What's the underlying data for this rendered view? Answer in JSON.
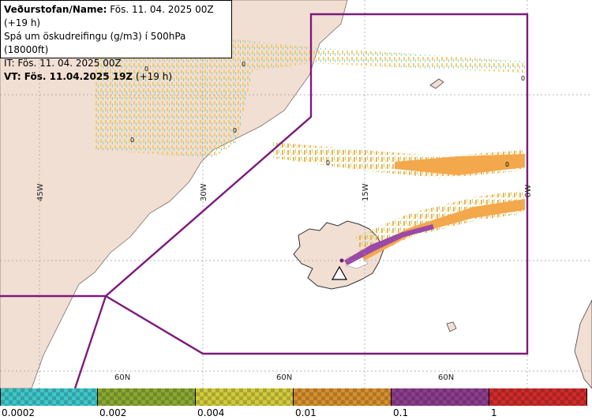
{
  "header": {
    "line1_bold": "Veðurstofan/Name:",
    "line1_rest": " Fös. 11. 04. 2025 00Z (+19 h)",
    "line2": "Spá um öskudreifingu (g/m3) í 500hPa (18000ft)",
    "line3": "IT: Fös. 11. 04. 2025 00Z",
    "line4_bold": "VT: Fös. 11.04.2025 19Z",
    "line4_rest": " (+19 h)"
  },
  "grid_labels": {
    "lon": [
      "45W",
      "30W",
      "15W",
      "0W"
    ],
    "lat": [
      "60N",
      "60N",
      "60N"
    ]
  },
  "contour_zero": "0",
  "legend": {
    "ticks": [
      "0.0002",
      "0.002",
      "0.004",
      "0.01",
      "0.1",
      "1"
    ],
    "colors": [
      "#3fc6c8",
      "#8aa832",
      "#d1cb3c",
      "#d68f2e",
      "#8c3d8c",
      "#cf2b2b"
    ]
  },
  "icons": {
    "volcano": "volcano-warning-icon"
  }
}
